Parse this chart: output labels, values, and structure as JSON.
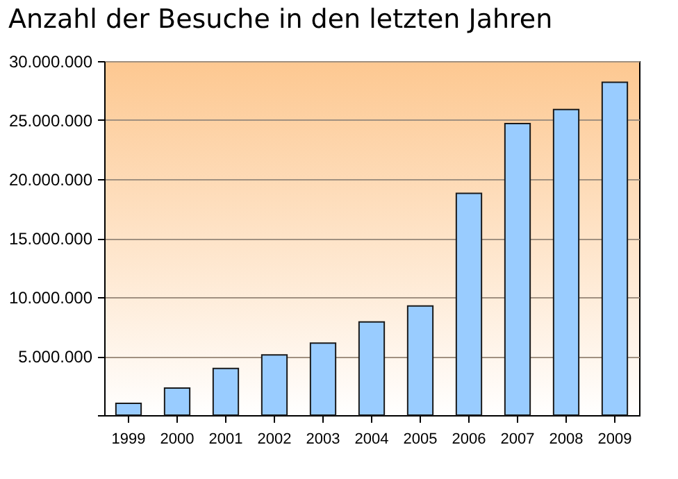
{
  "chart_data": {
    "type": "bar",
    "title": "Anzahl der Besuche in den letzten Jahren",
    "categories": [
      "1999",
      "2000",
      "2001",
      "2002",
      "2003",
      "2004",
      "2005",
      "2006",
      "2007",
      "2008",
      "2009"
    ],
    "values": [
      1000000,
      2300000,
      3950000,
      5100000,
      6100000,
      7900000,
      9250000,
      18800000,
      24700000,
      25900000,
      28200000
    ],
    "color": "#99ccff",
    "ylim": [
      0,
      30000000
    ],
    "yticks": [
      {
        "value": 0,
        "label": null
      },
      {
        "value": 5000000,
        "label": "5.000.000"
      },
      {
        "value": 10000000,
        "label": "10.000.000"
      },
      {
        "value": 15000000,
        "label": "15.000.000"
      },
      {
        "value": 20000000,
        "label": "20.000.000"
      },
      {
        "value": 25000000,
        "label": "25.000.000"
      },
      {
        "value": 30000000,
        "label": "30.000.000"
      }
    ],
    "grid": "y"
  }
}
